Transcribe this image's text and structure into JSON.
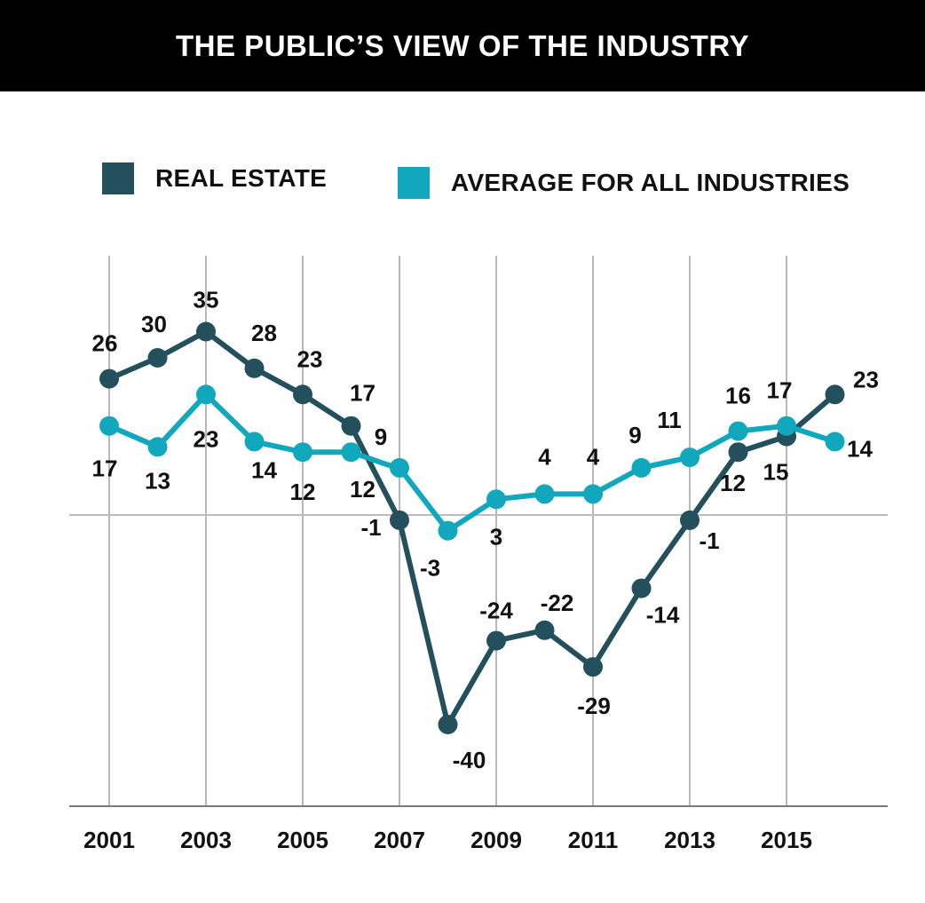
{
  "chart_data": {
    "type": "line",
    "title": "THE PUBLIC'S VIEW OF THE INDUSTRY",
    "xlabel": "",
    "ylabel": "",
    "grid": true,
    "legend_position": "top",
    "x": [
      2001,
      2002,
      2003,
      2004,
      2005,
      2006,
      2007,
      2008,
      2009,
      2010,
      2011,
      2012,
      2013,
      2014,
      2015,
      2016
    ],
    "x_tick_labels": [
      "2001",
      "2003",
      "2005",
      "2007",
      "2009",
      "2011",
      "2013",
      "2015"
    ],
    "x_ticks": [
      2001,
      2003,
      2005,
      2007,
      2009,
      2011,
      2013,
      2015
    ],
    "ylim": [
      -55,
      50
    ],
    "series": [
      {
        "name": "REAL ESTATE",
        "color": "#23505c",
        "values": [
          26,
          30,
          35,
          28,
          23,
          17,
          -1,
          -40,
          -24,
          -22,
          -29,
          -14,
          -1,
          12,
          15,
          23
        ]
      },
      {
        "name": "AVERAGE FOR ALL INDUSTRIES",
        "color": "#11a7bd",
        "values": [
          17,
          13,
          23,
          14,
          12,
          12,
          9,
          -3,
          3,
          4,
          4,
          9,
          11,
          16,
          17,
          14
        ]
      }
    ]
  },
  "header": {
    "title": "THE PUBLIC’S VIEW OF THE INDUSTRY"
  },
  "legend": [
    {
      "label": "REAL ESTATE",
      "color": "#23505c"
    },
    {
      "label": "AVERAGE FOR ALL INDUSTRIES",
      "color": "#11a7bd"
    }
  ]
}
